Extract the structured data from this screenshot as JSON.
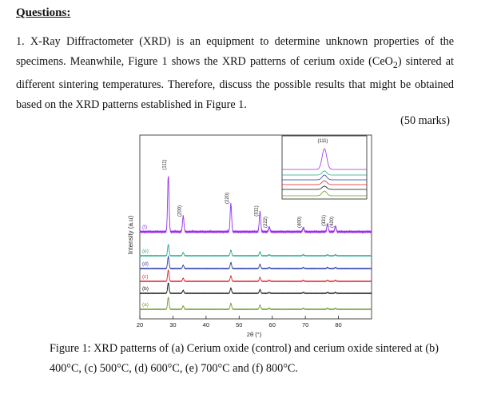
{
  "heading": "Questions:",
  "question": {
    "p1": "1. X-Ray Diffractometer (XRD) is an equipment to determine unknown properties of the specimens. Meanwhile, Figure 1 shows the XRD patterns of cerium oxide (CeO",
    "sub": "2",
    "p2": ") sintered at different sintering temperatures. Therefore, discuss the possible results that might be obtained based on the XRD patterns established in Figure 1."
  },
  "marks": "(50 marks)",
  "caption": "Figure 1: XRD patterns of (a) Cerium oxide (control) and cerium oxide sintered at (b) 400°C, (c) 500°C, (d) 600°C, (e) 700°C and (f) 800°C.",
  "chart_data": {
    "type": "line",
    "title": "",
    "xlabel": "2θ (°)",
    "ylabel": "Intensity (a.u)",
    "xlim": [
      20,
      90
    ],
    "xticks": [
      20,
      30,
      40,
      50,
      60,
      70,
      80
    ],
    "grid": false,
    "peaks": [
      {
        "label": "(111)",
        "x": 28.6,
        "rel": 1.0
      },
      {
        "label": "(200)",
        "x": 33.1,
        "rel": 0.28
      },
      {
        "label": "(220)",
        "x": 47.5,
        "rel": 0.5
      },
      {
        "label": "(311)",
        "x": 56.3,
        "rel": 0.36
      },
      {
        "label": "(222)",
        "x": 59.1,
        "rel": 0.08
      },
      {
        "label": "(400)",
        "x": 69.4,
        "rel": 0.07
      },
      {
        "label": "(331)",
        "x": 76.7,
        "rel": 0.14
      },
      {
        "label": "(420)",
        "x": 79.1,
        "rel": 0.1
      }
    ],
    "series": [
      {
        "name": "(a)",
        "color": "#6b9e2a",
        "scale": 0.4
      },
      {
        "name": "(b)",
        "color": "#111111",
        "scale": 0.32
      },
      {
        "name": "(c)",
        "color": "#e0202a",
        "scale": 0.35
      },
      {
        "name": "(d)",
        "color": "#2b3ea8",
        "scale": 0.38
      },
      {
        "name": "(e)",
        "color": "#25a890",
        "scale": 0.35
      },
      {
        "name": "(f)",
        "color": "#9a30e8",
        "scale": 1.0
      }
    ],
    "inset": {
      "label": "(111)",
      "xlim": [
        27.5,
        29.7
      ]
    }
  }
}
